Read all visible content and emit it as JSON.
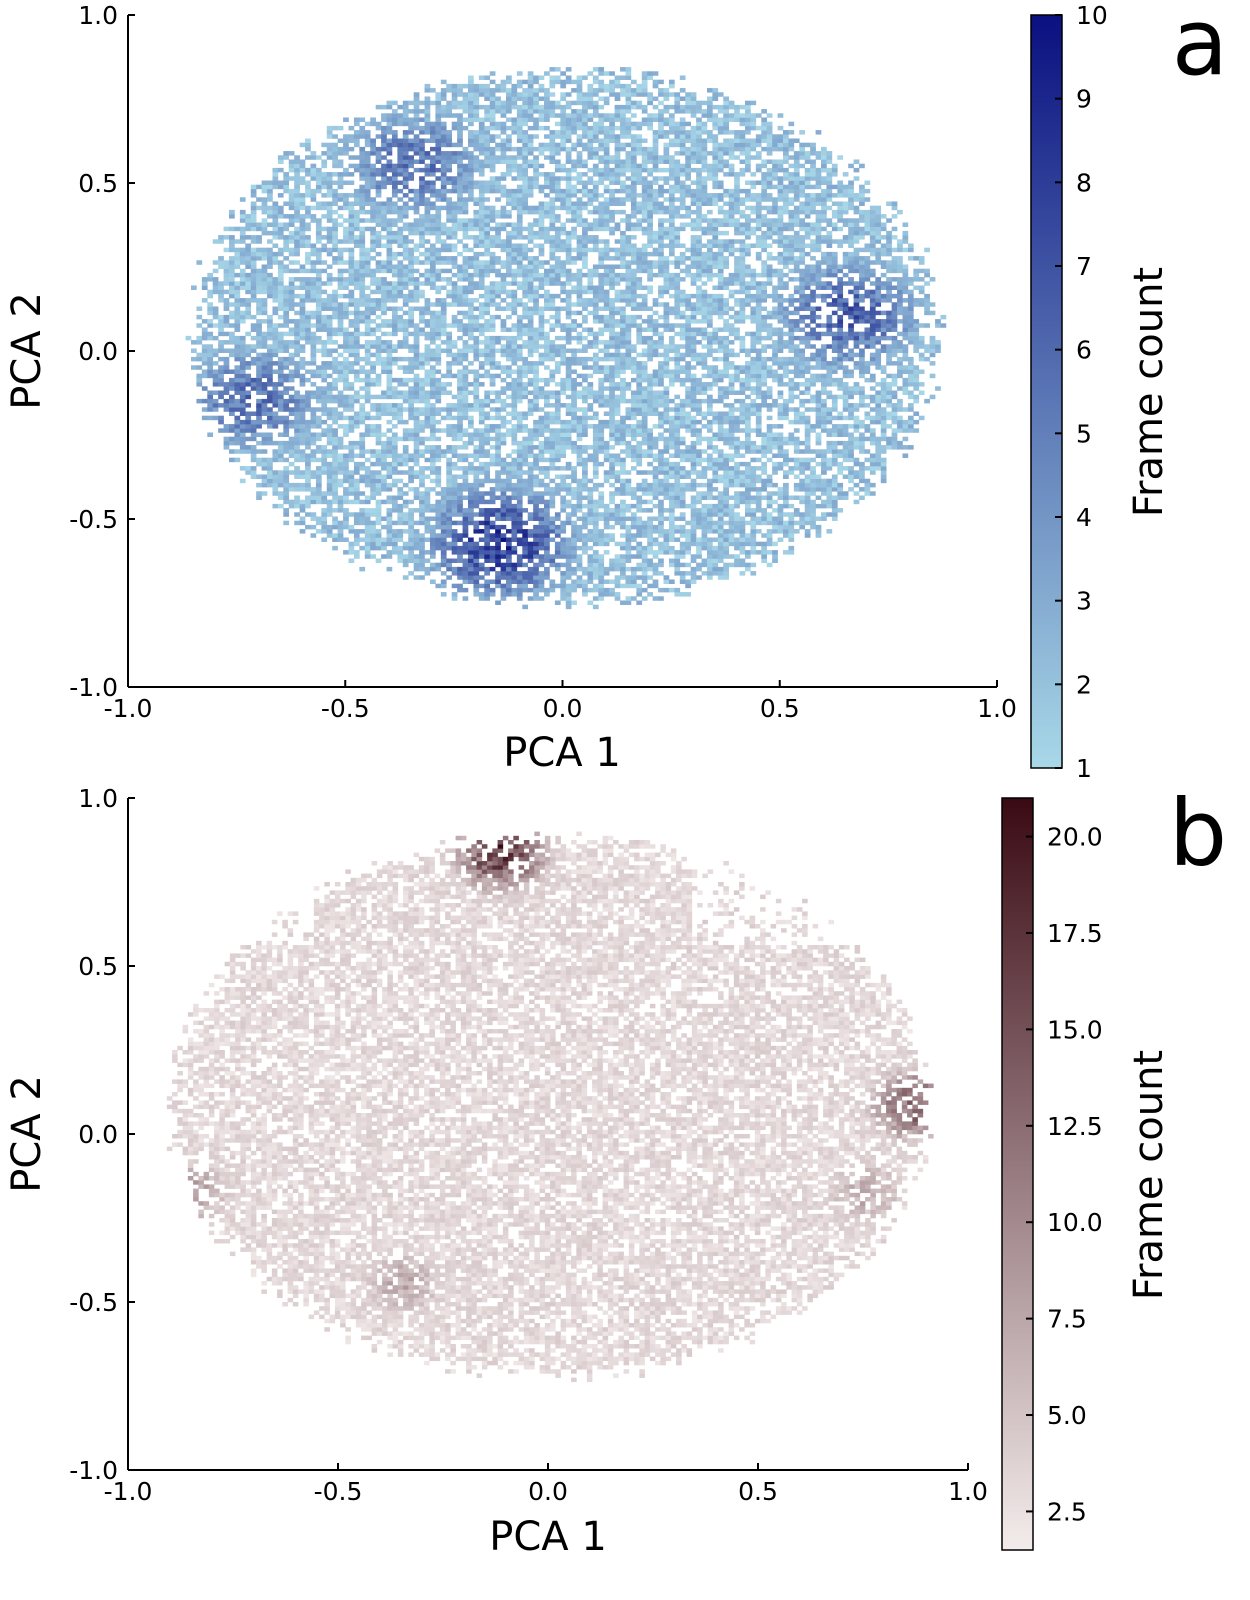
{
  "chart_data": [
    {
      "type": "heatmap",
      "panel_label": "a",
      "title": "",
      "xlabel": "PCA 1",
      "ylabel": "PCA 2",
      "xlim": [
        -1.0,
        1.0
      ],
      "ylim": [
        -1.0,
        1.0
      ],
      "x_ticks": [
        "-1.0",
        "-0.5",
        "0.0",
        "0.5",
        "1.0"
      ],
      "y_ticks": [
        "-1.0",
        "-0.5",
        "0.0",
        "0.5",
        "1.0"
      ],
      "colorbar": {
        "label": "Frame count",
        "range": [
          1,
          10
        ],
        "ticks": [
          "1",
          "2",
          "3",
          "4",
          "5",
          "6",
          "7",
          "8",
          "9",
          "10"
        ],
        "color_low": "#a8d8e8",
        "color_high": "#0a1080"
      },
      "grid": false,
      "distribution": {
        "bin_size": 0.0125,
        "x_extent": [
          -0.88,
          0.88
        ],
        "y_extent": [
          -0.78,
          0.85
        ],
        "dense_regions": [
          {
            "x": -0.15,
            "y": -0.58,
            "peak": 10
          },
          {
            "x": 0.65,
            "y": 0.1,
            "peak": 8
          },
          {
            "x": -0.35,
            "y": 0.55,
            "peak": 7
          },
          {
            "x": -0.72,
            "y": -0.15,
            "peak": 7
          }
        ]
      }
    },
    {
      "type": "heatmap",
      "panel_label": "b",
      "title": "",
      "xlabel": "PCA 1",
      "ylabel": "PCA 2",
      "xlim": [
        -1.0,
        1.0
      ],
      "ylim": [
        -1.0,
        1.0
      ],
      "x_ticks": [
        "-1.0",
        "-0.5",
        "0.0",
        "0.5",
        "1.0"
      ],
      "y_ticks": [
        "-1.0",
        "-0.5",
        "0.0",
        "0.5",
        "1.0"
      ],
      "colorbar": {
        "label": "Frame count",
        "range": [
          1.5,
          21
        ],
        "ticks": [
          "2.5",
          "5.0",
          "7.5",
          "10.0",
          "12.5",
          "15.0",
          "17.5",
          "20.0"
        ],
        "color_low": "#f4ecec",
        "color_high": "#3a0a14"
      },
      "grid": false,
      "distribution": {
        "bin_size": 0.0125,
        "x_extent": [
          -0.92,
          0.92
        ],
        "y_extent": [
          -0.75,
          0.9
        ],
        "dense_regions": [
          {
            "x": -0.12,
            "y": 0.83,
            "peak": 21
          },
          {
            "x": 0.87,
            "y": 0.08,
            "peak": 17
          },
          {
            "x": -0.86,
            "y": -0.18,
            "peak": 10
          },
          {
            "x": -0.35,
            "y": -0.45,
            "peak": 9
          },
          {
            "x": 0.75,
            "y": -0.18,
            "peak": 9
          }
        ]
      }
    }
  ]
}
